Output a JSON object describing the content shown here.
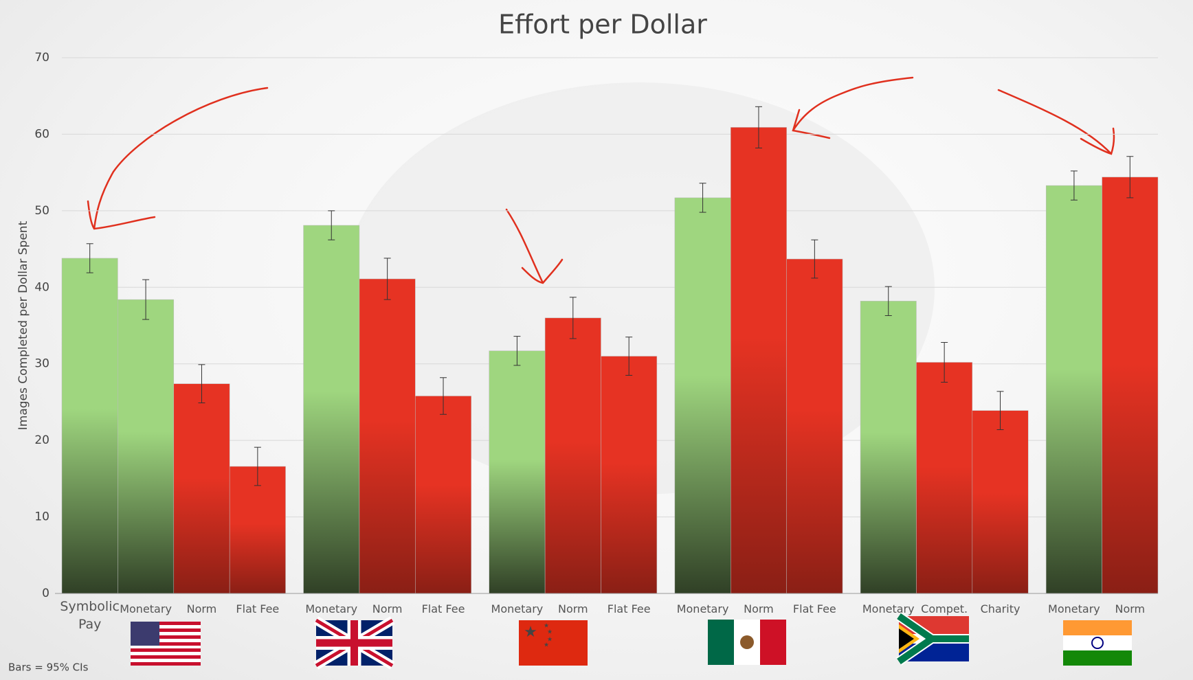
{
  "chart_data": {
    "type": "bar",
    "title": "Effort per Dollar",
    "y_label": "Images Completed per Dollar Spent",
    "note": "Bars = 95% CIs",
    "ylim": [
      0,
      70
    ],
    "yticks": [
      0,
      10,
      20,
      30,
      40,
      50,
      60,
      70
    ],
    "grid": true,
    "groups": [
      {
        "categories": [
          "Symbolic Pay",
          "Monetary",
          "Norm",
          "Flat Fee"
        ],
        "values": [
          43.8,
          38.4,
          27.4,
          16.6
        ],
        "errors": [
          1.9,
          2.6,
          2.5,
          2.5
        ],
        "colors": [
          "#9fd67f",
          "#9fd67f",
          "#e63323",
          "#e63323"
        ]
      },
      {
        "categories": [
          "Monetary",
          "Norm",
          "Flat Fee"
        ],
        "values": [
          48.1,
          41.1,
          25.8
        ],
        "errors": [
          1.9,
          2.7,
          2.4
        ],
        "colors": [
          "#9fd67f",
          "#e63323",
          "#e63323"
        ]
      },
      {
        "categories": [
          "Monetary",
          "Norm",
          "Flat Fee"
        ],
        "values": [
          31.7,
          36.0,
          31.0
        ],
        "errors": [
          1.9,
          2.7,
          2.5
        ],
        "colors": [
          "#9fd67f",
          "#e63323",
          "#e63323"
        ]
      },
      {
        "categories": [
          "Monetary",
          "Norm",
          "Flat Fee"
        ],
        "values": [
          51.7,
          60.9,
          43.7
        ],
        "errors": [
          1.9,
          2.7,
          2.5
        ],
        "colors": [
          "#9fd67f",
          "#e63323",
          "#e63323"
        ]
      },
      {
        "categories": [
          "Monetary",
          "Compet.",
          "Charity"
        ],
        "values": [
          38.2,
          30.2,
          23.9
        ],
        "errors": [
          1.9,
          2.6,
          2.5
        ],
        "colors": [
          "#9fd67f",
          "#e63323",
          "#e63323"
        ]
      },
      {
        "categories": [
          "Monetary",
          "Norm"
        ],
        "values": [
          53.3,
          54.4
        ],
        "errors": [
          1.9,
          2.7
        ],
        "colors": [
          "#9fd67f",
          "#e63323"
        ]
      }
    ]
  }
}
